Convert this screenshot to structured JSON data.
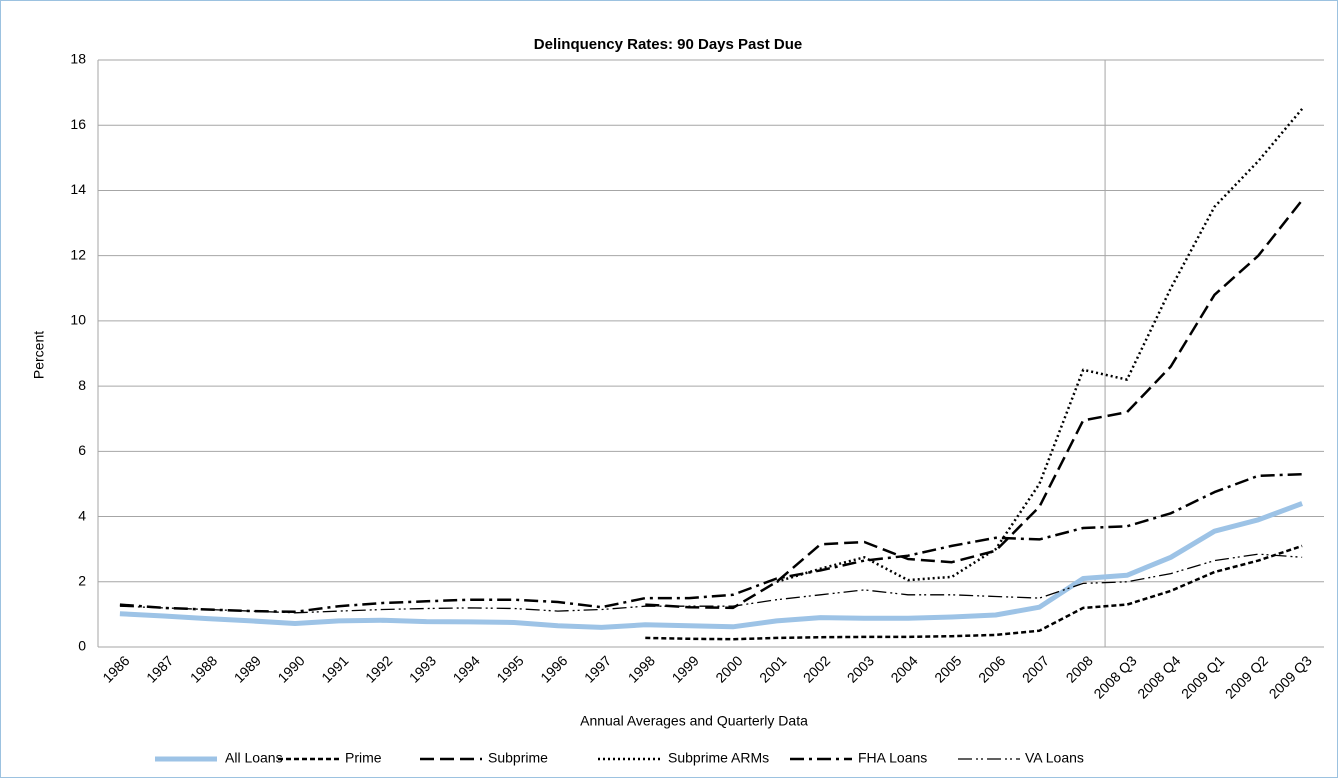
{
  "chart_data": {
    "type": "line",
    "title": "Delinquency Rates: 90 Days Past Due",
    "x_label": "Annual Averages and Quarterly Data",
    "y_label": "Percent",
    "categories": [
      "1986",
      "1987",
      "1988",
      "1989",
      "1990",
      "1991",
      "1992",
      "1993",
      "1994",
      "1995",
      "1996",
      "1997",
      "1998",
      "1999",
      "2000",
      "2001",
      "2002",
      "2003",
      "2004",
      "2005",
      "2006",
      "2007",
      "2008",
      "2008 Q3",
      "2008 Q4",
      "2009 Q1",
      "2009 Q2",
      "2009 Q3"
    ],
    "ylim": [
      0,
      18
    ],
    "yticks": [
      0,
      2,
      4,
      6,
      8,
      10,
      12,
      14,
      16,
      18
    ],
    "grid": true,
    "legend": "bottom",
    "series": [
      {
        "name": "All Loans",
        "color": "#9dc3e6",
        "width": 5,
        "dash": "none",
        "values": [
          1.02,
          0.95,
          0.87,
          0.8,
          0.72,
          0.8,
          0.82,
          0.78,
          0.77,
          0.75,
          0.65,
          0.6,
          0.68,
          0.65,
          0.62,
          0.8,
          0.9,
          0.88,
          0.88,
          0.92,
          0.98,
          1.22,
          2.1,
          2.2,
          2.75,
          3.55,
          3.9,
          4.4
        ]
      },
      {
        "name": "Prime",
        "color": "#000000",
        "width": 2.5,
        "dash": "5,3",
        "values": [
          null,
          null,
          null,
          null,
          null,
          null,
          null,
          null,
          null,
          null,
          null,
          null,
          0.28,
          0.25,
          0.24,
          0.28,
          0.3,
          0.31,
          0.31,
          0.33,
          0.37,
          0.5,
          1.2,
          1.3,
          1.72,
          2.3,
          2.65,
          3.1
        ]
      },
      {
        "name": "Subprime",
        "color": "#000000",
        "width": 2.5,
        "dash": "14,6",
        "values": [
          null,
          null,
          null,
          null,
          null,
          null,
          null,
          null,
          null,
          null,
          null,
          null,
          1.3,
          1.22,
          1.2,
          2.0,
          3.15,
          3.22,
          2.7,
          2.6,
          2.95,
          4.3,
          6.95,
          7.2,
          8.6,
          10.8,
          12.0,
          13.7
        ]
      },
      {
        "name": "Subprime ARMs",
        "color": "#000000",
        "width": 2.5,
        "dash": "2,3",
        "values": [
          null,
          null,
          null,
          null,
          null,
          null,
          null,
          null,
          null,
          null,
          null,
          null,
          null,
          null,
          null,
          2.0,
          2.4,
          2.75,
          2.05,
          2.15,
          3.0,
          5.0,
          8.5,
          8.2,
          11.0,
          13.5,
          14.9,
          16.5
        ]
      },
      {
        "name": "FHA Loans",
        "color": "#000000",
        "width": 2.5,
        "dash": "14,5,3,5",
        "values": [
          1.3,
          1.2,
          1.15,
          1.1,
          1.08,
          1.25,
          1.35,
          1.4,
          1.45,
          1.45,
          1.38,
          1.22,
          1.5,
          1.5,
          1.6,
          2.1,
          2.35,
          2.65,
          2.8,
          3.1,
          3.35,
          3.3,
          3.65,
          3.7,
          4.1,
          4.75,
          5.25,
          5.3
        ]
      },
      {
        "name": "VA Loans",
        "color": "#000000",
        "width": 1.3,
        "dash": "14,4,2,3,2,4",
        "values": [
          1.25,
          1.2,
          1.15,
          1.1,
          1.05,
          1.1,
          1.15,
          1.18,
          1.2,
          1.18,
          1.1,
          1.15,
          1.25,
          1.25,
          1.25,
          1.45,
          1.6,
          1.75,
          1.6,
          1.6,
          1.55,
          1.5,
          1.95,
          2.0,
          2.25,
          2.65,
          2.85,
          2.75
        ]
      }
    ]
  }
}
